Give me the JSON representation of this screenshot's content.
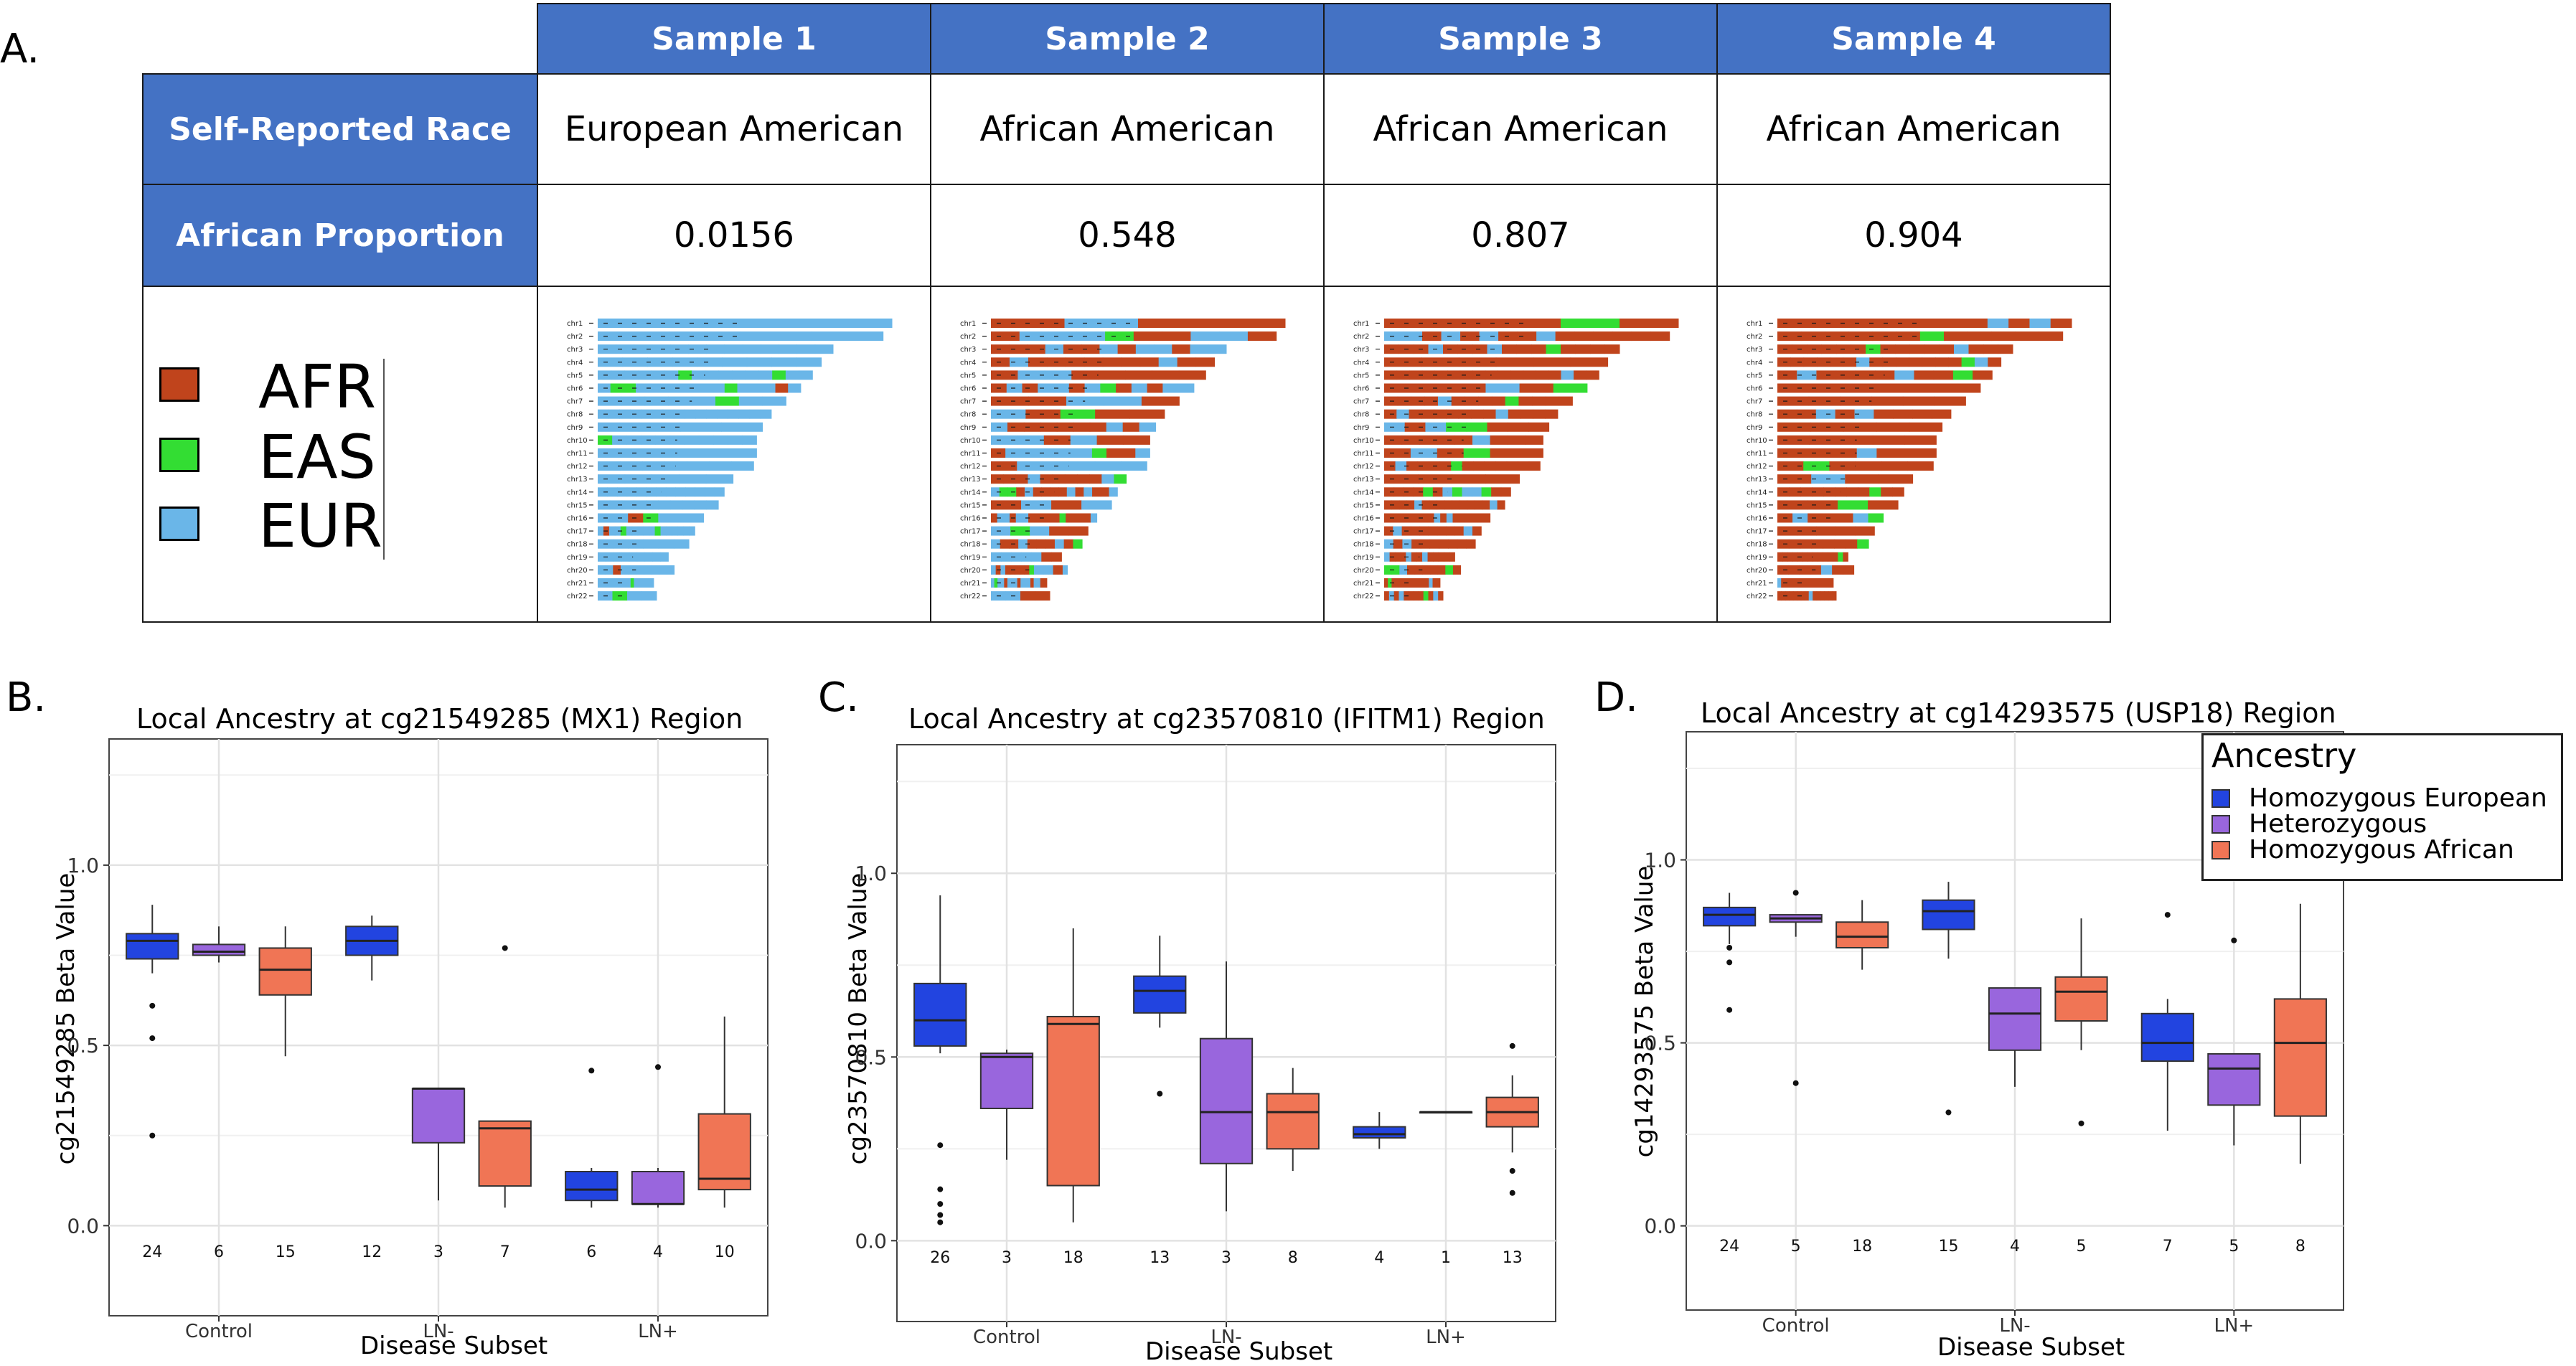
{
  "panels": {
    "a": "A.",
    "b": "B.",
    "c": "C.",
    "d": "D."
  },
  "table": {
    "samples": [
      "Sample 1",
      "Sample 2",
      "Sample 3",
      "Sample 4"
    ],
    "row_labels": [
      "Self-Reported Race",
      "African Proportion"
    ],
    "race": [
      "European American",
      "African American",
      "African American",
      "African American"
    ],
    "african_proportion": [
      "0.0156",
      "0.548",
      "0.807",
      "0.904"
    ],
    "chromosomes": [
      "chr1",
      "chr2",
      "chr3",
      "chr4",
      "chr5",
      "chr6",
      "chr7",
      "chr8",
      "chr9",
      "chr10",
      "chr11",
      "chr12",
      "chr13",
      "chr14",
      "chr15",
      "chr16",
      "chr17",
      "chr18",
      "chr19",
      "chr20",
      "chr21",
      "chr22"
    ]
  },
  "ancestry_legend": [
    {
      "label": "AFR",
      "color": "#c0441c"
    },
    {
      "label": "EAS",
      "color": "#33dd33"
    },
    {
      "label": "EUR",
      "color": "#6ab6e8"
    }
  ],
  "colors": {
    "header_blue": "#4472c4",
    "homozygous_european": "#2244e0",
    "heterozygous": "#9966dd",
    "homozygous_african": "#f07555"
  },
  "chart_legend": {
    "title": "Ancestry",
    "items": [
      "Homozygous European",
      "Heterozygous",
      "Homozygous African"
    ]
  },
  "chart_data": [
    {
      "type": "box",
      "title": "Local Ancestry at cg21549285 (MX1) Region",
      "xlabel": "Disease Subset",
      "ylabel": "cg21549285 Beta Value",
      "categories": [
        "Control",
        "LN-",
        "LN+"
      ],
      "yticks": [
        "0.0",
        "0.5",
        "1.0"
      ],
      "ylim": [
        -0.25,
        1.35
      ],
      "groups": [
        {
          "category": "Control",
          "series": "Homozygous European",
          "min": 0.7,
          "q1": 0.74,
          "median": 0.79,
          "q3": 0.81,
          "max": 0.89,
          "outliers": [
            0.61,
            0.52,
            0.25
          ],
          "n": "24"
        },
        {
          "category": "Control",
          "series": "Heterozygous",
          "min": 0.73,
          "q1": 0.75,
          "median": 0.76,
          "q3": 0.78,
          "max": 0.83,
          "outliers": [],
          "n": "6"
        },
        {
          "category": "Control",
          "series": "Homozygous African",
          "min": 0.47,
          "q1": 0.64,
          "median": 0.71,
          "q3": 0.77,
          "max": 0.83,
          "outliers": [],
          "n": "15"
        },
        {
          "category": "LN-",
          "series": "Homozygous European",
          "min": 0.68,
          "q1": 0.75,
          "median": 0.79,
          "q3": 0.83,
          "max": 0.86,
          "outliers": [],
          "n": "12"
        },
        {
          "category": "LN-",
          "series": "Heterozygous",
          "min": 0.07,
          "q1": 0.23,
          "median": 0.38,
          "q3": 0.38,
          "max": 0.38,
          "outliers": [],
          "n": "3"
        },
        {
          "category": "LN-",
          "series": "Homozygous African",
          "min": 0.05,
          "q1": 0.11,
          "median": 0.27,
          "q3": 0.29,
          "max": 0.29,
          "outliers": [
            0.77
          ],
          "n": "7"
        },
        {
          "category": "LN+",
          "series": "Homozygous European",
          "min": 0.05,
          "q1": 0.07,
          "median": 0.1,
          "q3": 0.15,
          "max": 0.16,
          "outliers": [
            0.43
          ],
          "n": "6"
        },
        {
          "category": "LN+",
          "series": "Heterozygous",
          "min": 0.05,
          "q1": 0.06,
          "median": 0.06,
          "q3": 0.15,
          "max": 0.16,
          "outliers": [
            0.44
          ],
          "n": "4"
        },
        {
          "category": "LN+",
          "series": "Homozygous African",
          "min": 0.05,
          "q1": 0.1,
          "median": 0.13,
          "q3": 0.31,
          "max": 0.58,
          "outliers": [],
          "n": "10"
        }
      ]
    },
    {
      "type": "box",
      "title": "Local Ancestry at cg23570810 (IFITM1) Region",
      "xlabel": "Disease Subset",
      "ylabel": "cg23570810 Beta Value",
      "categories": [
        "Control",
        "LN-",
        "LN+"
      ],
      "yticks": [
        "0.0",
        "0.5",
        "1.0"
      ],
      "ylim": [
        -0.22,
        1.35
      ],
      "groups": [
        {
          "category": "Control",
          "series": "Homozygous European",
          "min": 0.51,
          "q1": 0.53,
          "median": 0.6,
          "q3": 0.7,
          "max": 0.94,
          "outliers": [
            0.26,
            0.14,
            0.1,
            0.07,
            0.05
          ],
          "n": "26"
        },
        {
          "category": "Control",
          "series": "Heterozygous",
          "min": 0.22,
          "q1": 0.36,
          "median": 0.5,
          "q3": 0.51,
          "max": 0.52,
          "outliers": [],
          "n": "3"
        },
        {
          "category": "Control",
          "series": "Homozygous African",
          "min": 0.05,
          "q1": 0.15,
          "median": 0.59,
          "q3": 0.61,
          "max": 0.85,
          "outliers": [],
          "n": "18"
        },
        {
          "category": "LN-",
          "series": "Homozygous European",
          "min": 0.58,
          "q1": 0.62,
          "median": 0.68,
          "q3": 0.72,
          "max": 0.83,
          "outliers": [
            0.4
          ],
          "n": "13"
        },
        {
          "category": "LN-",
          "series": "Heterozygous",
          "min": 0.08,
          "q1": 0.21,
          "median": 0.35,
          "q3": 0.55,
          "max": 0.76,
          "outliers": [],
          "n": "3"
        },
        {
          "category": "LN-",
          "series": "Homozygous African",
          "min": 0.19,
          "q1": 0.25,
          "median": 0.35,
          "q3": 0.4,
          "max": 0.47,
          "outliers": [],
          "n": "8"
        },
        {
          "category": "LN+",
          "series": "Homozygous European",
          "min": 0.25,
          "q1": 0.28,
          "median": 0.29,
          "q3": 0.31,
          "max": 0.35,
          "outliers": [],
          "n": "4"
        },
        {
          "category": "LN+",
          "series": "Heterozygous",
          "min": 0.35,
          "q1": 0.35,
          "median": 0.35,
          "q3": 0.35,
          "max": 0.35,
          "outliers": [],
          "n": "1"
        },
        {
          "category": "LN+",
          "series": "Homozygous African",
          "min": 0.24,
          "q1": 0.31,
          "median": 0.35,
          "q3": 0.39,
          "max": 0.45,
          "outliers": [
            0.53,
            0.19,
            0.13
          ],
          "n": "13"
        }
      ]
    },
    {
      "type": "box",
      "title": "Local Ancestry at cg14293575 (USP18) Region",
      "xlabel": "Disease Subset",
      "ylabel": "cg14293575 Beta Value",
      "categories": [
        "Control",
        "LN-",
        "LN+"
      ],
      "yticks": [
        "0.0",
        "0.5",
        "1.0"
      ],
      "ylim": [
        -0.23,
        1.35
      ],
      "groups": [
        {
          "category": "Control",
          "series": "Homozygous European",
          "min": 0.77,
          "q1": 0.82,
          "median": 0.85,
          "q3": 0.87,
          "max": 0.91,
          "outliers": [
            0.76,
            0.72,
            0.59
          ],
          "n": "24"
        },
        {
          "category": "Control",
          "series": "Heterozygous",
          "min": 0.79,
          "q1": 0.83,
          "median": 0.84,
          "q3": 0.85,
          "max": 0.85,
          "outliers": [
            0.91,
            0.39
          ],
          "n": "5"
        },
        {
          "category": "Control",
          "series": "Homozygous African",
          "min": 0.7,
          "q1": 0.76,
          "median": 0.79,
          "q3": 0.83,
          "max": 0.89,
          "outliers": [],
          "n": "18"
        },
        {
          "category": "LN-",
          "series": "Homozygous European",
          "min": 0.73,
          "q1": 0.81,
          "median": 0.86,
          "q3": 0.89,
          "max": 0.94,
          "outliers": [
            0.31
          ],
          "n": "15"
        },
        {
          "category": "LN-",
          "series": "Heterozygous",
          "min": 0.38,
          "q1": 0.48,
          "median": 0.58,
          "q3": 0.65,
          "max": 0.65,
          "outliers": [],
          "n": "4"
        },
        {
          "category": "LN-",
          "series": "Homozygous African",
          "min": 0.48,
          "q1": 0.56,
          "median": 0.64,
          "q3": 0.68,
          "max": 0.84,
          "outliers": [
            0.28
          ],
          "n": "5"
        },
        {
          "category": "LN+",
          "series": "Homozygous European",
          "min": 0.26,
          "q1": 0.45,
          "median": 0.5,
          "q3": 0.58,
          "max": 0.62,
          "outliers": [
            0.85
          ],
          "n": "7"
        },
        {
          "category": "LN+",
          "series": "Heterozygous",
          "min": 0.22,
          "q1": 0.33,
          "median": 0.43,
          "q3": 0.47,
          "max": 0.47,
          "outliers": [
            0.78
          ],
          "n": "5"
        },
        {
          "category": "LN+",
          "series": "Homozygous African",
          "min": 0.17,
          "q1": 0.3,
          "median": 0.5,
          "q3": 0.62,
          "max": 0.88,
          "outliers": [],
          "n": "8"
        }
      ]
    }
  ]
}
